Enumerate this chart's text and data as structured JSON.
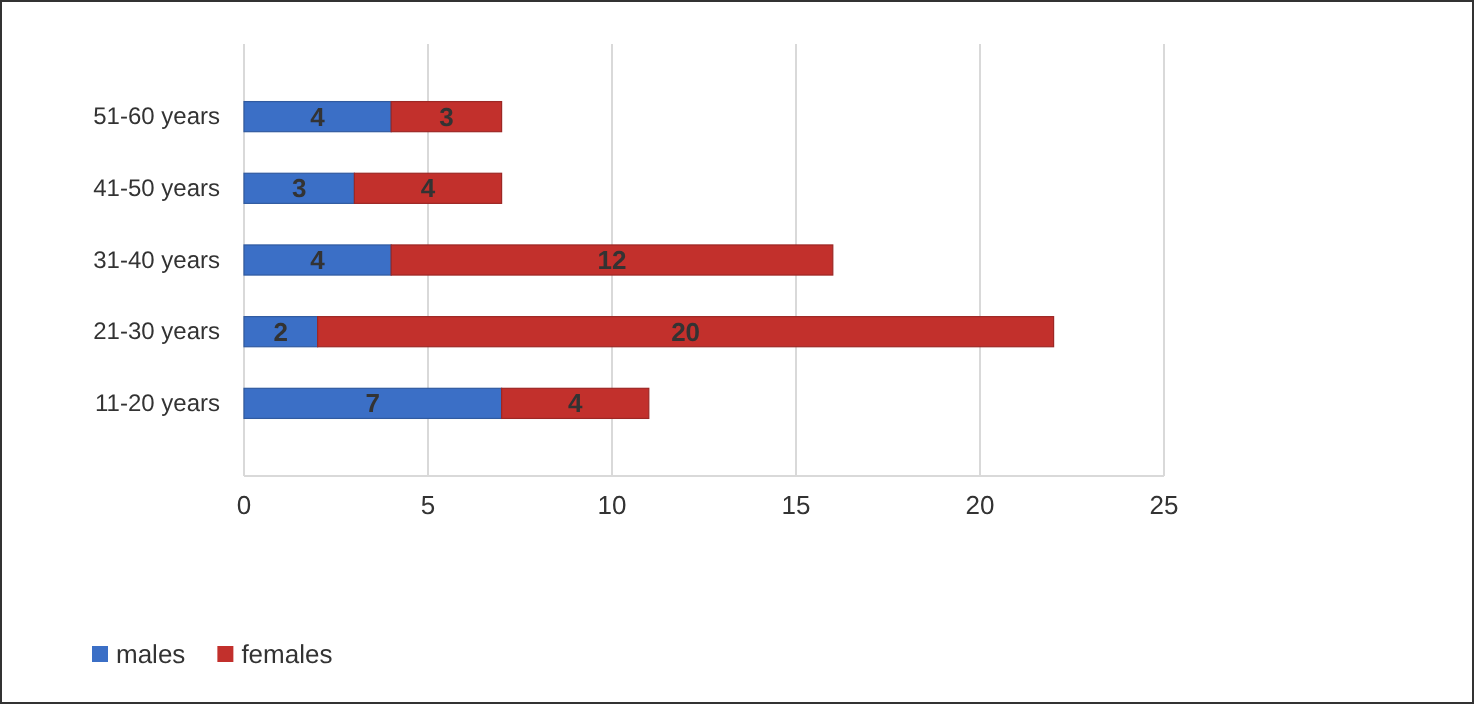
{
  "chart_data": {
    "type": "bar",
    "orientation": "horizontal",
    "stacked": true,
    "categories": [
      "51-60 years",
      "41-50 years",
      "31-40 years",
      "21-30 years",
      "11-20 years"
    ],
    "series": [
      {
        "name": "males",
        "color": "#3b6fc6",
        "values": [
          4,
          3,
          4,
          2,
          7
        ]
      },
      {
        "name": "females",
        "color": "#c2302c",
        "values": [
          3,
          4,
          12,
          20,
          4
        ]
      }
    ],
    "xlim": [
      0,
      25
    ],
    "xticks": [
      0,
      5,
      10,
      15,
      20,
      25
    ],
    "grid": "x",
    "legend": "bottom left",
    "data_labels": true
  }
}
